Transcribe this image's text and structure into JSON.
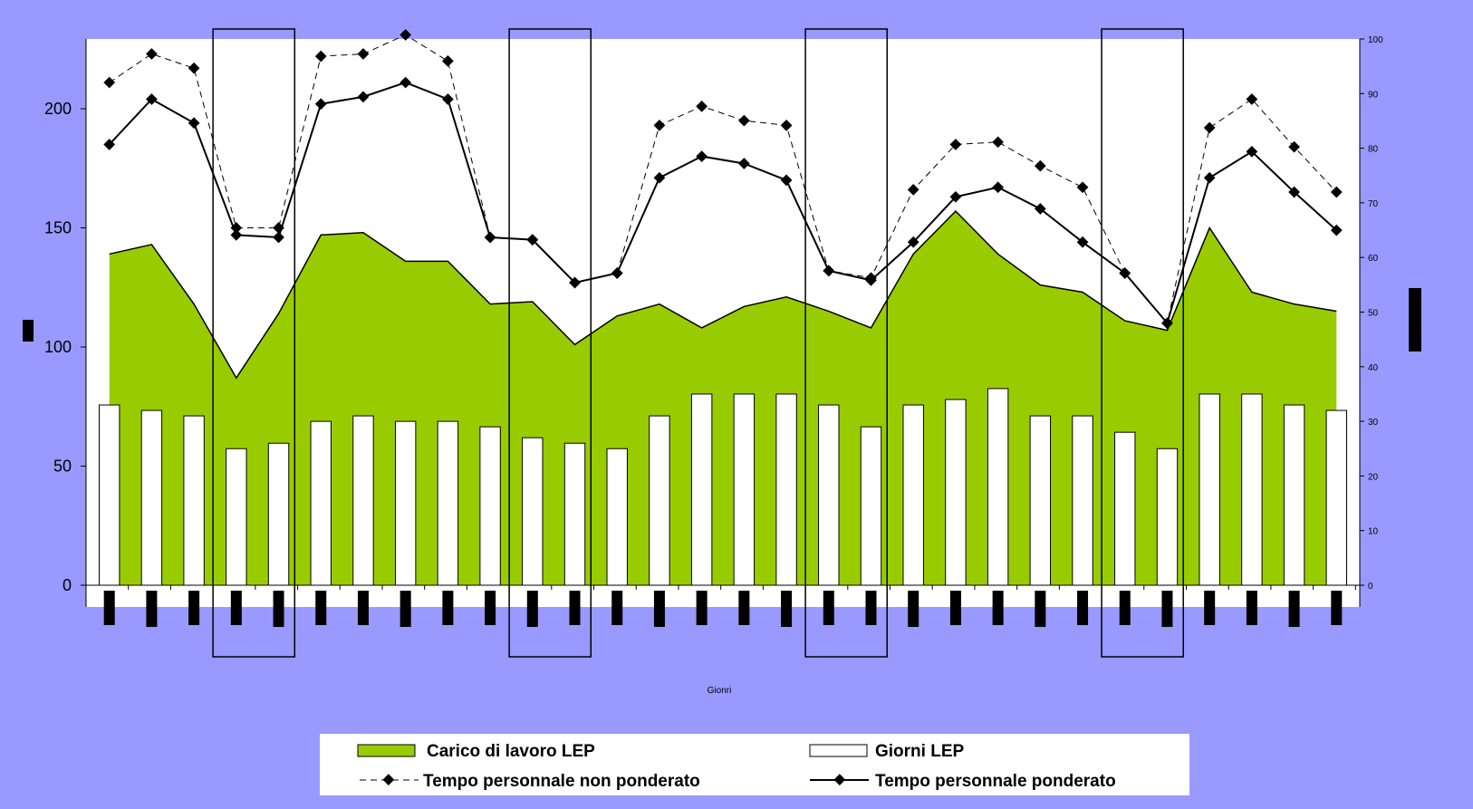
{
  "chart_data": {
    "type": "bar",
    "xlabel": "Gionri",
    "y_left": {
      "min": 0,
      "max": 230,
      "ticks": [
        0,
        50,
        100,
        150,
        200
      ]
    },
    "y_right": {
      "min": 0,
      "max": 100,
      "ticks": [
        0,
        10,
        20,
        30,
        40,
        50,
        60,
        70,
        80,
        90,
        100
      ]
    },
    "categories_count": 30,
    "highlighted_groups": [
      [
        3,
        4
      ],
      [
        10,
        11
      ],
      [
        17,
        18
      ],
      [
        24,
        25
      ]
    ],
    "series": [
      {
        "name": "Carico di lavoro LEP",
        "kind": "area",
        "axis": "left",
        "color": "#99cc00",
        "values": [
          139,
          143,
          118,
          87,
          114,
          147,
          148,
          136,
          136,
          118,
          119,
          101,
          113,
          118,
          108,
          117,
          121,
          115,
          108,
          139,
          157,
          139,
          126,
          123,
          111,
          107,
          150,
          123,
          118,
          115
        ]
      },
      {
        "name": "Giorni LEP",
        "kind": "bar",
        "axis": "right",
        "color": "#ffffff",
        "values": [
          33,
          32,
          31,
          25,
          26,
          30,
          31,
          30,
          30,
          29,
          27,
          26,
          25,
          31,
          35,
          35,
          35,
          33,
          29,
          33,
          34,
          36,
          31,
          31,
          28,
          25,
          35,
          35,
          33,
          32
        ]
      },
      {
        "name": "Tempo personnale non ponderato",
        "kind": "line-dashed",
        "axis": "left",
        "color": "#000000",
        "values": [
          211,
          223,
          217,
          150,
          150,
          222,
          223,
          231,
          220,
          146,
          145,
          127,
          131,
          193,
          201,
          195,
          193,
          132,
          129,
          166,
          185,
          186,
          176,
          167,
          131,
          110,
          192,
          204,
          184,
          165
        ]
      },
      {
        "name": "Tempo personnale ponderato",
        "kind": "line",
        "axis": "left",
        "color": "#000000",
        "values": [
          185,
          204,
          194,
          147,
          146,
          202,
          205,
          211,
          204,
          146,
          145,
          127,
          131,
          171,
          180,
          177,
          170,
          132,
          128,
          144,
          163,
          167,
          158,
          144,
          131,
          110,
          171,
          182,
          165,
          149
        ]
      }
    ],
    "legend": {
      "position": "bottom",
      "entries": [
        "Carico di lavoro LEP",
        "Giorni LEP",
        "Tempo personnale non ponderato",
        "Tempo personnale ponderato"
      ]
    }
  }
}
